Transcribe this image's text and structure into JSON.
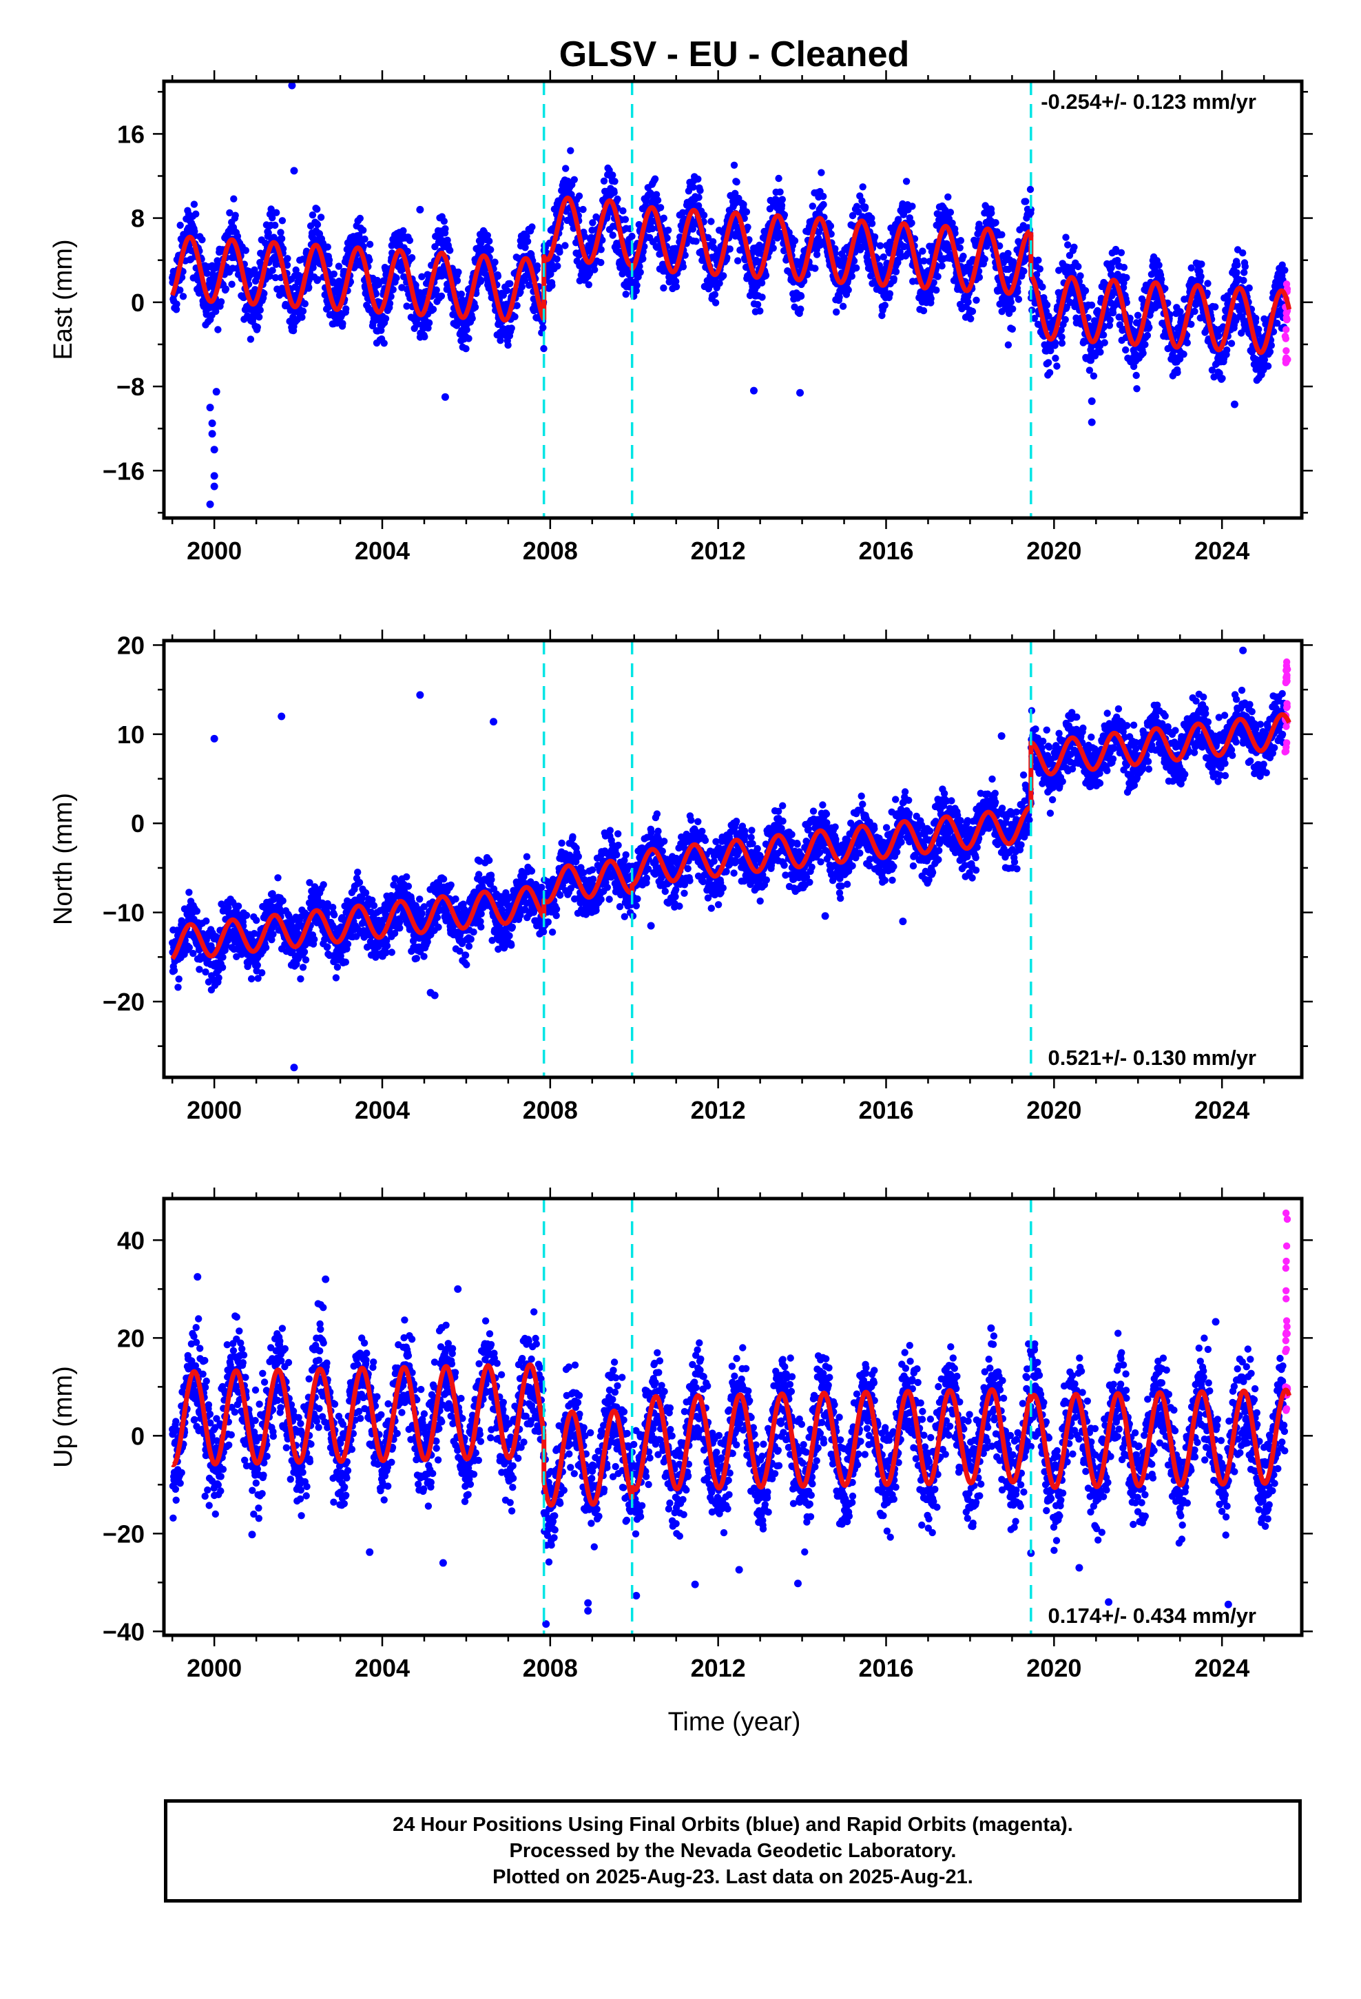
{
  "chart_data": {
    "type": "scatter",
    "title": "GLSV  - EU - Cleaned",
    "xlabel": "Time (year)",
    "xlim": [
      1998.8,
      2025.9
    ],
    "xticks": [
      2000,
      2004,
      2008,
      2012,
      2016,
      2020,
      2024
    ],
    "xtick_labels": [
      "2000",
      "2004",
      "2008",
      "2012",
      "2016",
      "2020",
      "2024"
    ],
    "grid": false,
    "legend": "none",
    "colors": {
      "final_orbits": "#0000ff",
      "rapid_orbits": "#ff22ff",
      "model": "#ee1111",
      "offsets": "#00e5e5"
    },
    "offset_epochs": [
      2007.85,
      2009.95,
      2019.45
    ],
    "panels": [
      {
        "component": "east",
        "ylabel": "East (mm)",
        "ylim": [
          -20.5,
          21
        ],
        "yticks": [
          -16,
          -8,
          0,
          8,
          16
        ],
        "ytick_labels": [
          "−16",
          "−8",
          "0",
          "8",
          "16"
        ],
        "rate_text": "-0.254+/- 0.123 mm/yr",
        "rate_position": "top-right",
        "model": {
          "segments": [
            {
              "start": 1999.0,
              "end": 2007.85,
              "offset_mm": 0.0
            },
            {
              "start": 2007.85,
              "end": 2009.95,
              "offset_mm": 6.0
            },
            {
              "start": 2009.95,
              "end": 2019.45,
              "offset_mm": 5.6
            },
            {
              "start": 2019.45,
              "end": 2025.6,
              "offset_mm": 1.5
            }
          ],
          "rate_mm_per_yr": -0.254,
          "annual_amplitude_mm": 3.0,
          "annual_phase_years": 0.17,
          "reference_year": 2012.0
        },
        "rapid": {
          "start": 2025.5,
          "end": 2025.64,
          "low": -6.5,
          "high": 2.2
        },
        "outliers": [
          {
            "x": 2001.85,
            "y": 20.6
          },
          {
            "x": 2001.9,
            "y": 12.5
          },
          {
            "x": 1999.95,
            "y": -11.5
          },
          {
            "x": 1999.95,
            "y": -12.5
          },
          {
            "x": 2000.0,
            "y": -14.0
          },
          {
            "x": 2000.0,
            "y": -16.5
          },
          {
            "x": 2000.0,
            "y": -17.5
          },
          {
            "x": 1999.9,
            "y": -19.2
          },
          {
            "x": 1999.9,
            "y": -10.0
          },
          {
            "x": 2000.05,
            "y": -8.5
          },
          {
            "x": 2020.9,
            "y": -11.4
          },
          {
            "x": 2020.9,
            "y": -9.4
          },
          {
            "x": 2012.85,
            "y": -8.4
          },
          {
            "x": 2005.5,
            "y": -9.0
          },
          {
            "x": 2024.3,
            "y": -9.7
          },
          {
            "x": 2013.95,
            "y": -8.6
          },
          {
            "x": 2004.9,
            "y": 8.8
          },
          {
            "x": 2002.5,
            "y": 6.5
          }
        ]
      },
      {
        "component": "north",
        "ylabel": "North (mm)",
        "ylim": [
          -28.5,
          20.5
        ],
        "yticks": [
          -20,
          -10,
          0,
          10,
          20
        ],
        "ytick_labels": [
          "−20",
          "−10",
          "0",
          "10",
          "20"
        ],
        "rate_text": "0.521+/- 0.130 mm/yr",
        "rate_position": "bottom-right",
        "model": {
          "segments": [
            {
              "start": 1999.0,
              "end": 2007.85,
              "offset_mm": -6.7
            },
            {
              "start": 2007.85,
              "end": 2009.95,
              "offset_mm": -4.8
            },
            {
              "start": 2009.95,
              "end": 2019.45,
              "offset_mm": -4.0
            },
            {
              "start": 2019.45,
              "end": 2025.6,
              "offset_mm": 3.3
            }
          ],
          "rate_mm_per_yr": 0.521,
          "annual_amplitude_mm": 1.9,
          "annual_phase_years": 0.18,
          "reference_year": 2012.0
        },
        "rapid": {
          "start": 2025.5,
          "end": 2025.64,
          "low": 6.2,
          "high": 18.2
        },
        "outliers": [
          {
            "x": 2001.9,
            "y": -27.4
          },
          {
            "x": 2001.95,
            "y": -15.8
          },
          {
            "x": 2001.95,
            "y": -11.7
          },
          {
            "x": 2005.15,
            "y": -19.0
          },
          {
            "x": 2005.25,
            "y": -19.3
          },
          {
            "x": 2005.0,
            "y": -12.8
          },
          {
            "x": 2004.9,
            "y": 14.4
          },
          {
            "x": 2001.6,
            "y": 12.0
          },
          {
            "x": 2006.65,
            "y": 11.4
          },
          {
            "x": 2024.5,
            "y": 19.4
          },
          {
            "x": 2018.75,
            "y": 9.8
          },
          {
            "x": 2000.0,
            "y": 9.5
          },
          {
            "x": 2010.4,
            "y": -11.5
          },
          {
            "x": 2016.4,
            "y": -11.0
          },
          {
            "x": 2014.55,
            "y": -10.4
          }
        ]
      },
      {
        "component": "up",
        "ylabel": "Up (mm)",
        "ylim": [
          -40.8,
          48.5
        ],
        "yticks": [
          -40,
          -20,
          0,
          20,
          40
        ],
        "ytick_labels": [
          "−40",
          "−20",
          "0",
          "20",
          "40"
        ],
        "rate_text": "0.174+/- 0.434 mm/yr",
        "rate_position": "bottom-right",
        "model": {
          "segments": [
            {
              "start": 1999.0,
              "end": 2007.85,
              "offset_mm": 5.8
            },
            {
              "start": 2007.85,
              "end": 2009.95,
              "offset_mm": -4.0
            },
            {
              "start": 2009.95,
              "end": 2019.45,
              "offset_mm": -1.2
            },
            {
              "start": 2019.45,
              "end": 2025.6,
              "offset_mm": -2.5
            }
          ],
          "rate_mm_per_yr": 0.174,
          "annual_amplitude_mm": 9.5,
          "annual_phase_years": 0.27,
          "reference_year": 2012.0
        },
        "rapid": {
          "start": 2025.5,
          "end": 2025.64,
          "low": 2.0,
          "high": 46.5
        },
        "outliers": [
          {
            "x": 1999.6,
            "y": 32.5
          },
          {
            "x": 2002.65,
            "y": 32.0
          },
          {
            "x": 2007.9,
            "y": -38.5
          },
          {
            "x": 2008.9,
            "y": -35.8
          },
          {
            "x": 2008.9,
            "y": -34.2
          },
          {
            "x": 2010.05,
            "y": -32.7
          },
          {
            "x": 2011.45,
            "y": -30.4
          },
          {
            "x": 2013.9,
            "y": -30.2
          },
          {
            "x": 2003.7,
            "y": -23.8
          },
          {
            "x": 2000.9,
            "y": -20.2
          },
          {
            "x": 2005.45,
            "y": -26.0
          },
          {
            "x": 2012.5,
            "y": -27.4
          },
          {
            "x": 2021.3,
            "y": -34.0
          },
          {
            "x": 2024.15,
            "y": -34.5
          },
          {
            "x": 2005.8,
            "y": 30.0
          },
          {
            "x": 2023.85,
            "y": 23.3
          },
          {
            "x": 2018.5,
            "y": 22.0
          },
          {
            "x": 2019.45,
            "y": -24.0
          },
          {
            "x": 2020.6,
            "y": -27.0
          }
        ]
      }
    ]
  },
  "footer": {
    "line1": "24 Hour Positions Using Final Orbits (blue) and Rapid Orbits (magenta).",
    "line2": "Processed by the Nevada Geodetic Laboratory.",
    "line3": "Plotted on 2025-Aug-23. Last data on 2025-Aug-21."
  }
}
